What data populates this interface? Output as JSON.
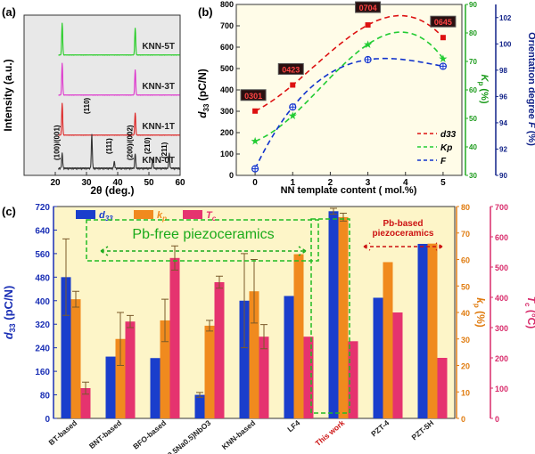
{
  "chart_data": [
    {
      "panel_label": "(a)",
      "type": "line",
      "xlabel": "2θ (deg.)",
      "ylabel": "Intensity (a.u.)",
      "xlim": [
        10,
        60
      ],
      "xticks": [
        20,
        30,
        40,
        50,
        60
      ],
      "series": [
        {
          "name": "KNN-5T",
          "color": "#22cc22",
          "peaks": [
            [
              22.2,
              1.0
            ],
            [
              45.6,
              0.85
            ]
          ]
        },
        {
          "name": "KNN-3T",
          "color": "#dd33cc",
          "peaks": [
            [
              22.2,
              1.0
            ],
            [
              45.6,
              0.8
            ]
          ]
        },
        {
          "name": "KNN-1T",
          "color": "#dd2222",
          "peaks": [
            [
              22.2,
              1.0
            ],
            [
              45.6,
              0.7
            ]
          ]
        },
        {
          "name": "KNN-0T",
          "color": "#333333",
          "peaks": [
            [
              22.2,
              0.45
            ],
            [
              31.7,
              1.0
            ],
            [
              38.9,
              0.2
            ],
            [
              45.6,
              0.45
            ],
            [
              51.2,
              0.3
            ],
            [
              56.5,
              0.45
            ]
          ]
        }
      ],
      "peak_labels": [
        {
          "text": "(100)/(001)",
          "x": 22.2
        },
        {
          "text": "(110)",
          "x": 31.7
        },
        {
          "text": "(111)",
          "x": 38.9
        },
        {
          "text": "(200)/(002)",
          "x": 45.6
        },
        {
          "text": "(210)",
          "x": 51.2
        },
        {
          "text": "(211)",
          "x": 56.5
        }
      ]
    },
    {
      "panel_label": "(b)",
      "type": "line",
      "xlabel": "NN template content ( mol.%)",
      "ylabel": "d33 (pC/N)",
      "ylabel_right1": "Kp (%)",
      "ylabel_right2": "Orientation degree F (%)",
      "x": [
        0,
        1,
        3,
        5
      ],
      "xlim": [
        -0.5,
        5.5
      ],
      "xticks": [
        0,
        1,
        2,
        3,
        4,
        5
      ],
      "ylim": [
        0,
        800
      ],
      "yticks": [
        0,
        100,
        200,
        300,
        400,
        500,
        600,
        700,
        800
      ],
      "ylim_right1": [
        30,
        90
      ],
      "yticks_right1": [
        30,
        40,
        50,
        60,
        70,
        80,
        90
      ],
      "ylim_right2": [
        90,
        103
      ],
      "yticks_right2": [
        90,
        92,
        94,
        96,
        98,
        100,
        102
      ],
      "series": [
        {
          "name": "d33",
          "color": "#dd1111",
          "axis": "left",
          "values": [
            301,
            423,
            704,
            645
          ],
          "labels": [
            "0301",
            "0423",
            "0704",
            "0645"
          ]
        },
        {
          "name": "Kp",
          "color": "#22cc33",
          "axis": "right1",
          "values": [
            42,
            51,
            76,
            71
          ]
        },
        {
          "name": "F",
          "color": "#1133cc",
          "axis": "right2",
          "values": [
            90.5,
            95.2,
            98.8,
            98.3
          ]
        }
      ],
      "legend": "right"
    },
    {
      "panel_label": "(c)",
      "type": "bar",
      "ylabel_left": "d33 (pC/N)",
      "ylabel_right1": "kp (%)",
      "ylabel_right2": "Tc (°C)",
      "ylim": [
        0,
        720
      ],
      "yticks": [
        0,
        80,
        160,
        240,
        320,
        400,
        480,
        560,
        640,
        720
      ],
      "ylim_right1": [
        0,
        80
      ],
      "yticks_right1": [
        0,
        10,
        20,
        30,
        40,
        50,
        60,
        70,
        80
      ],
      "ylim_right2": [
        0,
        700
      ],
      "yticks_right2": [
        0,
        100,
        200,
        300,
        400,
        500,
        600,
        700
      ],
      "categories": [
        "BT-based",
        "BNT-based",
        "BFO-based",
        "(K0.5Na0.5)NbO3",
        "KNN-based",
        "LF4",
        "This work",
        "PZT-4",
        "PZT-5H"
      ],
      "series": [
        {
          "name": "d33",
          "color": "#1a3ecc",
          "axis": "left",
          "values": [
            480,
            210,
            205,
            80,
            400,
            416,
            704,
            410,
            593
          ],
          "err": [
            130,
            0,
            0,
            8,
            160,
            0,
            10,
            0,
            0
          ]
        },
        {
          "name": "kp",
          "color": "#f08a1e",
          "axis": "right1",
          "values": [
            45,
            30,
            37,
            35,
            48,
            62,
            76,
            59,
            66
          ],
          "err": [
            3,
            10,
            8,
            2,
            12,
            0,
            1.5,
            0,
            0
          ]
        },
        {
          "name": "Tc",
          "color": "#e5336f",
          "axis": "right2",
          "values": [
            100,
            320,
            530,
            450,
            270,
            270,
            255,
            350,
            200
          ],
          "err": [
            20,
            20,
            40,
            20,
            40,
            0,
            0,
            0,
            0
          ]
        }
      ],
      "annotations": [
        "Pb-free  piezoceramics",
        "Pb-based piezoceramics"
      ],
      "legend": "top-left"
    }
  ],
  "labels": {
    "a_panel": "(a)",
    "b_panel": "(b)",
    "c_panel": "(c)",
    "a_ylabel": "Intensity (a.u.)",
    "a_xlabel": "2",
    "b_xlabel": "NN template content ( mol.%)",
    "b_d33": "d",
    "b_d33_sub": "33",
    "b_unit": " (pC/N)",
    "b_kp": "K",
    "b_kp_sub": "p",
    "b_kp_unit": " (%)",
    "b_F_a": "Orientation degree ",
    "b_F_b": "F",
    "b_F_c": " (%)",
    "c_d33": "d",
    "c_d33_sub": "33",
    "c_d33_unit": " (pC/N)",
    "c_kp": "k",
    "c_kp_sub": "p",
    "c_kp_unit": " (%)",
    "c_tc": "T",
    "c_tc_sub": "c",
    "c_tc_unit": " (°C)",
    "pbfree": "Pb-free  piezoceramics",
    "pbbased1": "Pb-based",
    "pbbased2": "piezoceramics",
    "a_deg": "θ (deg.)"
  }
}
